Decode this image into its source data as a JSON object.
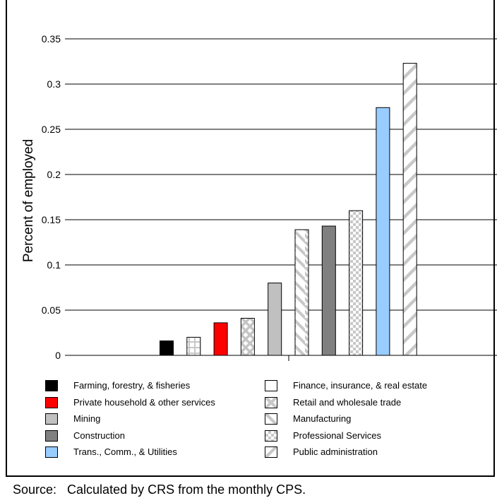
{
  "chart_data": {
    "type": "bar",
    "title": "",
    "ylabel": "Percent of employed",
    "xlabel": "",
    "ylim": [
      0,
      0.35
    ],
    "yticks": [
      "0",
      "0.05",
      "0.1",
      "0.15",
      "0.2",
      "0.25",
      "0.3",
      "0.35"
    ],
    "grid": true,
    "categories": [
      "Farming, forestry, & fisheries",
      "Finance, insurance, & real estate",
      "Private household & other services",
      "Retail and wholesale trade",
      "Mining",
      "Manufacturing",
      "Construction",
      "Professional Services",
      "Trans., Comm., & Utilities",
      "Public administration"
    ],
    "values": [
      0.016,
      0.02,
      0.036,
      0.041,
      0.08,
      0.139,
      0.143,
      0.16,
      0.274,
      0.323
    ],
    "bar_styles": [
      {
        "fill": "#000000",
        "pattern": "solid"
      },
      {
        "fill": "#ffffff",
        "pattern": "grid-light"
      },
      {
        "fill": "#ff0000",
        "pattern": "solid"
      },
      {
        "fill": "#ffffff",
        "pattern": "x-cross"
      },
      {
        "fill": "#c0c0c0",
        "pattern": "solid"
      },
      {
        "fill": "#ffffff",
        "pattern": "back-diagonal"
      },
      {
        "fill": "#808080",
        "pattern": "solid"
      },
      {
        "fill": "#ffffff",
        "pattern": "checker"
      },
      {
        "fill": "#99ccff",
        "pattern": "solid"
      },
      {
        "fill": "#ffffff",
        "pattern": "forward-diagonal"
      }
    ],
    "legend": {
      "placement": "bottom",
      "left_column": [
        {
          "label": "Farming, forestry, & fisheries",
          "pattern": "solid",
          "fill": "#000000"
        },
        {
          "label": "Private household & other services",
          "pattern": "solid",
          "fill": "#ff0000"
        },
        {
          "label": "Mining",
          "pattern": "solid",
          "fill": "#c0c0c0"
        },
        {
          "label": "Construction",
          "pattern": "solid",
          "fill": "#808080"
        },
        {
          "label": "Trans., Comm., & Utilities",
          "pattern": "solid",
          "fill": "#99ccff"
        }
      ],
      "right_column": [
        {
          "label": "Finance, insurance, & real estate",
          "pattern": "grid-light",
          "fill": "#ffffff"
        },
        {
          "label": "Retail and wholesale trade",
          "pattern": "x-cross",
          "fill": "#ffffff"
        },
        {
          "label": "Manufacturing",
          "pattern": "back-diagonal",
          "fill": "#ffffff"
        },
        {
          "label": "Professional Services",
          "pattern": "checker",
          "fill": "#ffffff"
        },
        {
          "label": "Public administration",
          "pattern": "forward-diagonal",
          "fill": "#ffffff"
        }
      ]
    }
  },
  "source_note": "Source:   Calculated by CRS from the monthly CPS."
}
